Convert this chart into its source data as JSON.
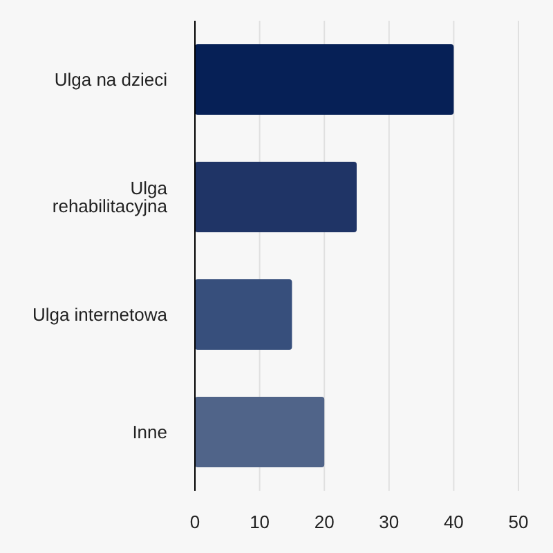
{
  "chart_data": {
    "type": "bar",
    "orientation": "horizontal",
    "categories": [
      "Ulga na dzieci",
      "Ulga rehabilitacyjna",
      "Ulga internetowa",
      "Inne"
    ],
    "values": [
      40,
      25,
      15,
      20
    ],
    "colors": [
      "#062056",
      "#1f3466",
      "#374f7c",
      "#506489"
    ],
    "xlim": [
      0,
      50
    ],
    "xticks": [
      0,
      10,
      20,
      30,
      40,
      50
    ],
    "grid": "x"
  }
}
